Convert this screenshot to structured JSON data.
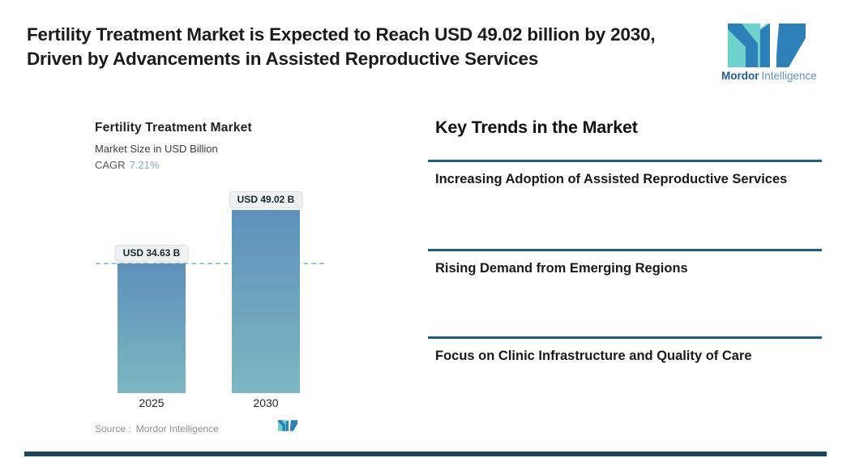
{
  "header": {
    "title": "Fertility Treatment Market is Expected to Reach USD 49.02 billion by 2030, Driven by Advancements in Assisted Reproductive Services",
    "brand": {
      "name_bold": "Mordor",
      "name_light": "Intelligence",
      "logo_icon": "mordor-intelligence-mark"
    }
  },
  "chart": {
    "title": "Fertility Treatment Market",
    "subtitle": "Market Size in USD Billion",
    "cagr_label": "CAGR",
    "cagr_value": "7.21%",
    "source_label": "Source :",
    "source_value": "Mordor Intelligence"
  },
  "chart_data": {
    "type": "bar",
    "title": "Fertility Treatment Market",
    "ylabel": "Market Size in USD Billion",
    "cagr": "7.21%",
    "categories": [
      "2025",
      "2030"
    ],
    "values": [
      34.63,
      49.02
    ],
    "value_labels": [
      "USD 34.63 B",
      "USD 49.02 B"
    ],
    "ylim": [
      0,
      52
    ],
    "grid": "off",
    "reference_line": {
      "style": "dashed",
      "at_value": 34.63,
      "color": "#a3c6d8"
    },
    "colors": {
      "bar_top": "#5d91bb",
      "bar_bottom": "#7db7c1",
      "pill_background": "#eef2f3",
      "pill_text": "#16262e"
    }
  },
  "trends": {
    "heading": "Key Trends in the Market",
    "items": [
      {
        "label": "Increasing Adoption of Assisted Reproductive Services"
      },
      {
        "label": "Rising Demand from Emerging Regions"
      },
      {
        "label": "Focus on Clinic Infrastructure and Quality of Care"
      }
    ]
  },
  "colors": {
    "divider": "#1f6080",
    "accent_teal": "#6fd1cb",
    "accent_blue": "#2e80b9",
    "bottom_bar": "#1e4456",
    "cagr_value": "#82abce"
  }
}
